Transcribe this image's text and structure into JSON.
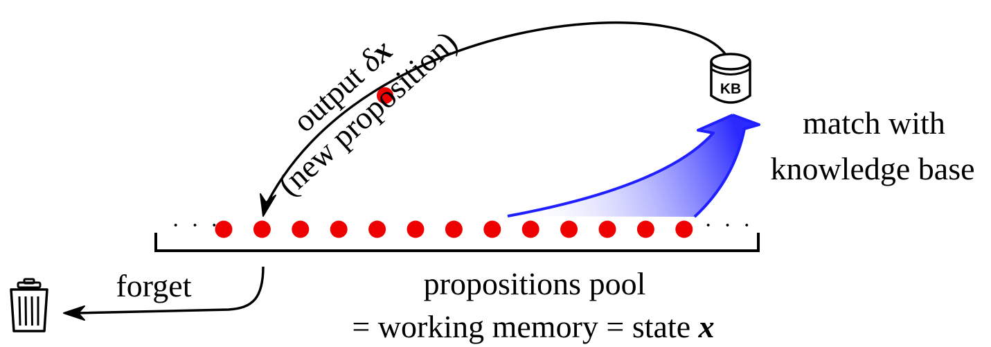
{
  "labels": {
    "output_line1_text": "output ",
    "output_line1_symbol": "δ",
    "output_line1_var": "x",
    "output_line2": "(new proposition)",
    "match_line1": "match with",
    "match_line2": "knowledge base",
    "forget": "forget",
    "pool_line1": "propositions pool",
    "pool_line2_text": "= working memory = state ",
    "pool_line2_var": "x",
    "kb_icon_text": "KB",
    "ellipsis_left": "· · ·",
    "ellipsis_right": "· · ·"
  },
  "propositions": {
    "count": 13,
    "color": "#ee0000"
  },
  "colors": {
    "match_arrow": "#1f1fff",
    "output_arrow": "#000000",
    "forget_arrow": "#000000"
  },
  "icons": {
    "knowledge_base": "database-icon",
    "trash": "trash-icon"
  }
}
